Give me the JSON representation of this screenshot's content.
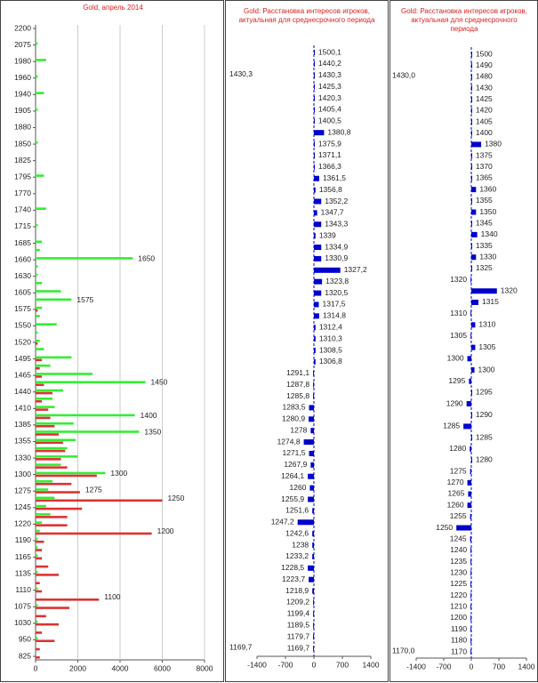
{
  "chart_data": [
    {
      "type": "bar",
      "title": "Gold, апрель 2014",
      "categories": [
        "2200",
        null,
        "2075",
        null,
        "1980",
        null,
        "1960",
        null,
        "1940",
        null,
        "1905",
        null,
        "1880",
        null,
        "1850",
        null,
        "1825",
        null,
        "1795",
        null,
        "1770",
        null,
        "1740",
        null,
        "1715",
        null,
        "1685",
        null,
        "1660",
        null,
        "1630",
        null,
        "1605",
        null,
        "1575",
        null,
        "1550",
        null,
        "1520",
        null,
        "1495",
        null,
        "1465",
        null,
        "1440",
        null,
        "1410",
        null,
        "1385",
        null,
        "1355",
        null,
        "1330",
        null,
        "1300",
        null,
        "1275",
        null,
        "1245",
        null,
        "1220",
        null,
        "1190",
        null,
        "1165",
        null,
        "1135",
        null,
        "1110",
        null,
        "1075",
        null,
        "1030",
        null,
        "950",
        null,
        "825"
      ],
      "series": [
        {
          "color": "#33ee33",
          "values": [
            0,
            0,
            100,
            0,
            500,
            0,
            100,
            0,
            400,
            0,
            100,
            0,
            0,
            0,
            100,
            0,
            0,
            0,
            400,
            0,
            0,
            0,
            500,
            0,
            100,
            0,
            300,
            200,
            4600,
            100,
            100,
            300,
            1200,
            1700,
            300,
            200,
            1000,
            100,
            200,
            400,
            1700,
            700,
            2700,
            5200,
            1300,
            800,
            900,
            4700,
            1800,
            4900,
            1900,
            1500,
            2000,
            1200,
            3300,
            800,
            600,
            900,
            500,
            700,
            300,
            200,
            100,
            100,
            100,
            0,
            100,
            0,
            100,
            0,
            100,
            0,
            100,
            0,
            100,
            0,
            0
          ]
        },
        {
          "color": "#dd3333",
          "values": [
            0,
            0,
            0,
            0,
            0,
            0,
            0,
            0,
            0,
            0,
            0,
            0,
            0,
            0,
            0,
            0,
            0,
            0,
            0,
            0,
            0,
            0,
            0,
            0,
            0,
            0,
            0,
            0,
            0,
            0,
            0,
            0,
            0,
            0,
            100,
            0,
            0,
            0,
            100,
            0,
            300,
            200,
            300,
            400,
            800,
            300,
            600,
            700,
            900,
            1100,
            1300,
            1400,
            1200,
            1500,
            2900,
            1700,
            2100,
            6000,
            2200,
            1500,
            1500,
            5500,
            400,
            300,
            300,
            600,
            1100,
            200,
            300,
            3000,
            1600,
            500,
            1100,
            300,
            900,
            200,
            200
          ]
        }
      ],
      "strike_labels": [
        null,
        null,
        null,
        null,
        null,
        null,
        null,
        null,
        null,
        null,
        null,
        null,
        null,
        null,
        null,
        null,
        null,
        null,
        null,
        null,
        null,
        null,
        null,
        null,
        null,
        null,
        null,
        null,
        "1650",
        null,
        null,
        null,
        null,
        "1575",
        null,
        null,
        null,
        null,
        null,
        null,
        null,
        null,
        null,
        "1450",
        null,
        null,
        null,
        "1400",
        null,
        "1350",
        null,
        null,
        null,
        null,
        "1300",
        null,
        "1275",
        "1250",
        null,
        null,
        null,
        "1200",
        null,
        null,
        null,
        null,
        null,
        null,
        null,
        "1100",
        null,
        null,
        null,
        null,
        null,
        null,
        null
      ],
      "xlim": [
        0,
        8000
      ],
      "xticks": [
        0,
        2000,
        4000,
        6000,
        8000
      ],
      "grid": true
    },
    {
      "type": "bar",
      "title": "Gold: Расстановка интересов игроков, актуальная для среднесрочного периода",
      "axis_top_label": "1430,3",
      "axis_bottom_label": "1169,7",
      "color": "#0000cc",
      "categories": [
        "1500,1",
        "1440,2",
        "1430,3",
        "1425,3",
        "1420,3",
        "1405,4",
        "1400,5",
        "1380,8",
        "1375,9",
        "1371,1",
        "1366,3",
        "1361,5",
        "1356,8",
        "1352,2",
        "1347,7",
        "1343,3",
        "1339",
        "1334,9",
        "1330,9",
        "1327,2",
        "1323,8",
        "1320,5",
        "1317,5",
        "1314,8",
        "1312,4",
        "1310,3",
        "1308,5",
        "1306,8",
        "1291,1",
        "1287,8",
        "1285,8",
        "1283,5",
        "1280,9",
        "1278",
        "1274,8",
        "1271,5",
        "1267,9",
        "1264,1",
        "1260",
        "1255,9",
        "1251,6",
        "1247,2",
        "1242,6",
        "1238",
        "1233,2",
        "1228,5",
        "1223,7",
        "1218,9",
        "1209,2",
        "1199,4",
        "1189,5",
        "1179,7",
        "1169,7"
      ],
      "values": [
        20,
        20,
        20,
        20,
        20,
        20,
        20,
        250,
        20,
        20,
        20,
        130,
        40,
        180,
        80,
        180,
        40,
        180,
        180,
        650,
        200,
        180,
        120,
        130,
        40,
        40,
        40,
        40,
        -20,
        -20,
        -20,
        -120,
        -130,
        -80,
        -250,
        -120,
        -80,
        -150,
        -100,
        -150,
        -40,
        -400,
        -40,
        -40,
        -40,
        -150,
        -130,
        -40,
        -20,
        -20,
        -20,
        -20,
        -20
      ],
      "xlim": [
        -1400,
        1400
      ],
      "xticks": [
        -1400,
        -700,
        0,
        700,
        1400
      ]
    },
    {
      "type": "bar",
      "title": "Gold: Расстановка интересов игроков, актуальная для среднесрочного периода",
      "axis_top_label": "1430,0",
      "axis_bottom_label": "1170,0",
      "color": "#0000cc",
      "categories": [
        "1500",
        "1490",
        "1480",
        "1430",
        "1425",
        "1420",
        "1405",
        "1400",
        "1380",
        "1375",
        "1370",
        "1365",
        "1360",
        "1355",
        "1350",
        "1345",
        "1340",
        "1335",
        "1330",
        "1325",
        "1320",
        "1320",
        "1315",
        "1310",
        "1310",
        "1305",
        "1305",
        "1300",
        "1300",
        "1295",
        "1295",
        "1290",
        "1290",
        "1285",
        "1285",
        "1280",
        "1280",
        "1275",
        "1270",
        "1265",
        "1260",
        "1255",
        "1250",
        "1245",
        "1240",
        "1235",
        "1230",
        "1225",
        "1220",
        "1210",
        "1200",
        "1190",
        "1180",
        "1170"
      ],
      "values": [
        20,
        20,
        20,
        20,
        20,
        20,
        20,
        20,
        250,
        20,
        20,
        20,
        120,
        20,
        120,
        20,
        150,
        20,
        120,
        20,
        -20,
        650,
        180,
        -20,
        100,
        -20,
        100,
        -100,
        80,
        -60,
        20,
        -120,
        20,
        -200,
        20,
        -40,
        20,
        -30,
        -100,
        -80,
        -100,
        -30,
        -380,
        -30,
        -20,
        -20,
        -20,
        -20,
        -20,
        -20,
        -20,
        -20,
        -20,
        -20
      ],
      "xlim": [
        -1400,
        1400
      ],
      "xticks": [
        -1400,
        -700,
        0,
        700,
        1400
      ]
    }
  ]
}
